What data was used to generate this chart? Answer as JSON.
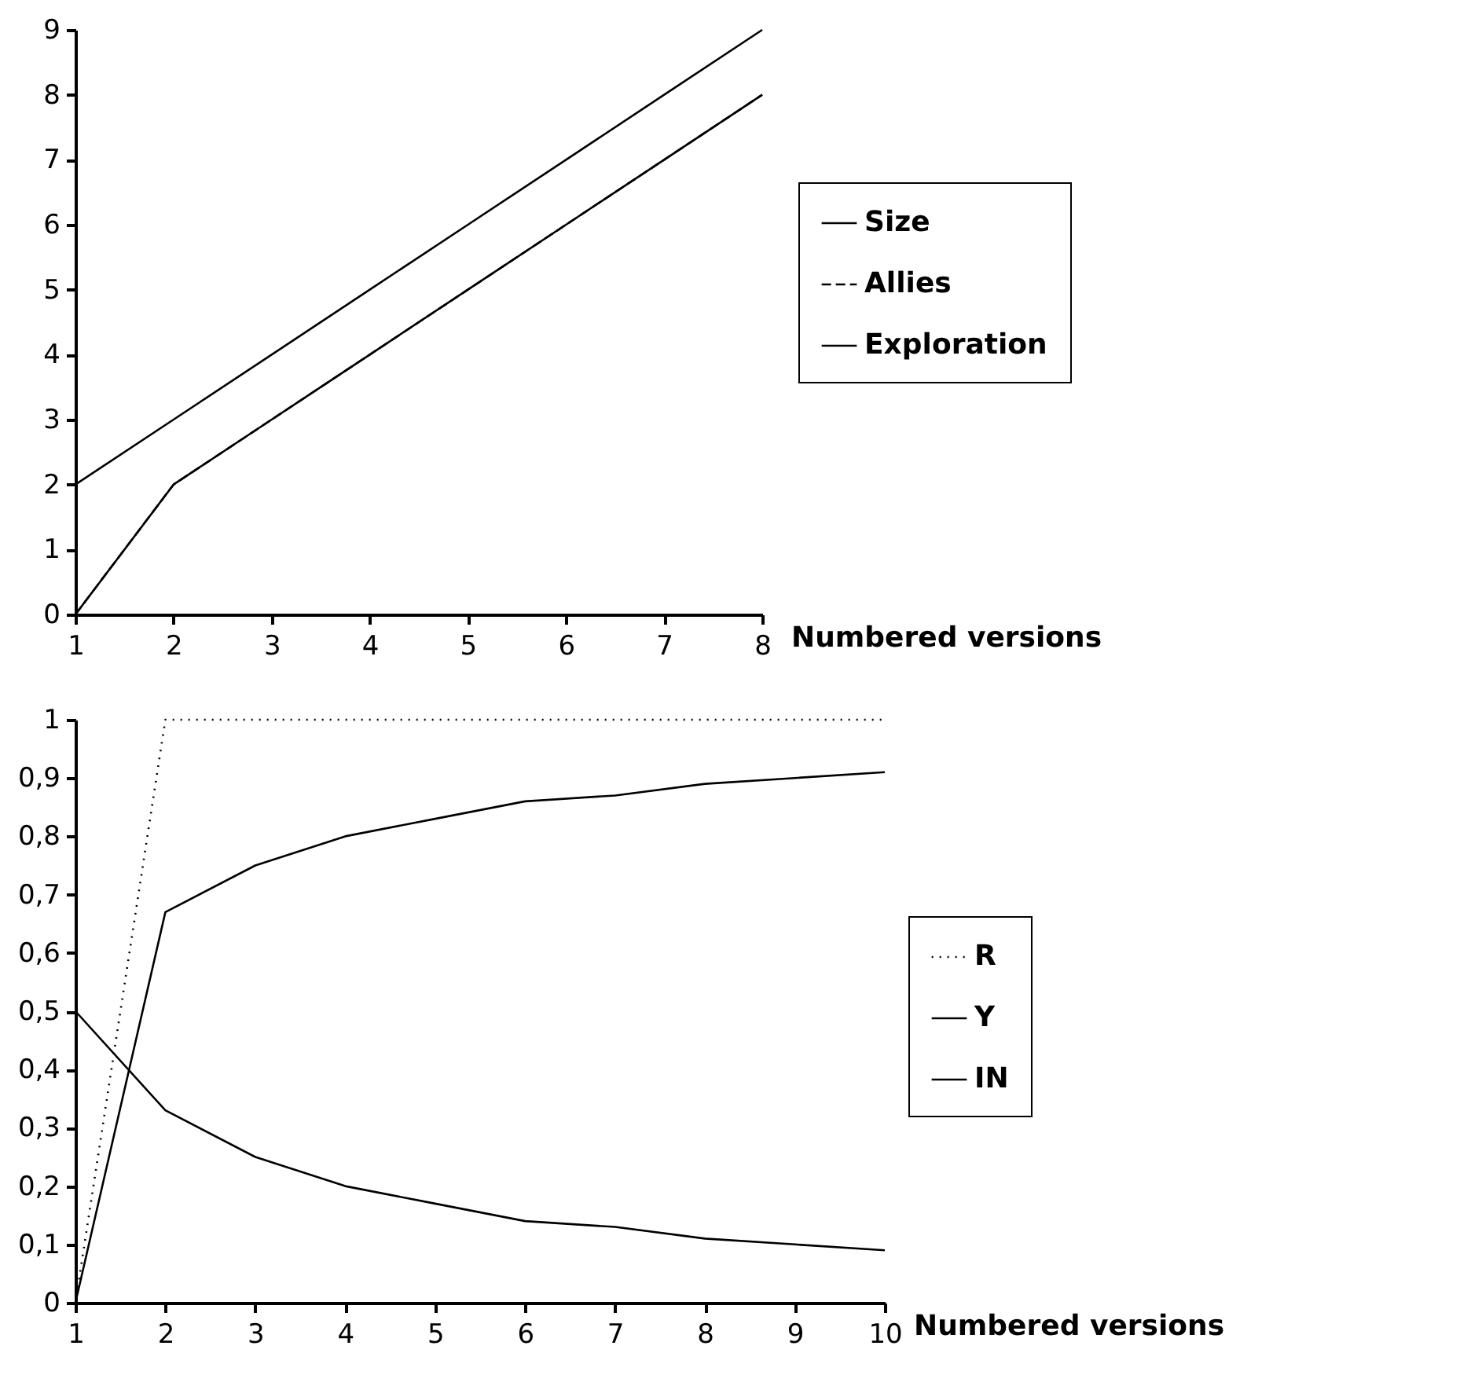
{
  "chart_data": [
    {
      "type": "line",
      "xlabel": "Numbered versions",
      "x": [
        1,
        2,
        3,
        4,
        5,
        6,
        7,
        8
      ],
      "xlim": [
        1,
        8
      ],
      "xticks": [
        1,
        2,
        3,
        4,
        5,
        6,
        7,
        8
      ],
      "ylim": [
        0,
        9
      ],
      "yticks": [
        0,
        1,
        2,
        3,
        4,
        5,
        6,
        7,
        8,
        9
      ],
      "grid": false,
      "legend": "right",
      "marker": "none",
      "series": [
        {
          "name": "Size",
          "color": "#000000",
          "line_style": "solid",
          "values": [
            0,
            2,
            3,
            4,
            5,
            6,
            7,
            8
          ]
        },
        {
          "name": "Allies",
          "color": "#000000",
          "line_style": "dashed",
          "values": [
            0,
            2,
            3,
            4,
            5,
            6,
            7,
            8
          ]
        },
        {
          "name": "Exploration",
          "color": "#000000",
          "line_style": "solid",
          "values": [
            2,
            3,
            4,
            5,
            6,
            7,
            8,
            9
          ]
        }
      ]
    },
    {
      "type": "line",
      "xlabel": "Numbered versions",
      "x": [
        1,
        2,
        3,
        4,
        5,
        6,
        7,
        8,
        9,
        10
      ],
      "xlim": [
        1,
        10
      ],
      "xticks": [
        1,
        2,
        3,
        4,
        5,
        6,
        7,
        8,
        9,
        10
      ],
      "ylim": [
        0,
        1
      ],
      "yticks": [
        0,
        {
          "value": 0.1,
          "label": "0,1"
        },
        {
          "value": 0.2,
          "label": "0,2"
        },
        {
          "value": 0.3,
          "label": "0,3"
        },
        {
          "value": 0.4,
          "label": "0,4"
        },
        {
          "value": 0.5,
          "label": "0,5"
        },
        {
          "value": 0.6,
          "label": "0,6"
        },
        {
          "value": 0.7,
          "label": "0,7"
        },
        {
          "value": 0.8,
          "label": "0,8"
        },
        {
          "value": 0.9,
          "label": "0,9"
        },
        1
      ],
      "grid": false,
      "legend": "right",
      "marker": "none",
      "series": [
        {
          "name": "R",
          "color": "#000000",
          "line_style": "dotted",
          "values": [
            0,
            1,
            1,
            1,
            1,
            1,
            1,
            1,
            1,
            1
          ]
        },
        {
          "name": "Y",
          "color": "#000000",
          "line_style": "solid",
          "values": [
            0,
            0.67,
            0.75,
            0.8,
            0.83,
            0.86,
            0.87,
            0.89,
            0.9,
            0.91
          ]
        },
        {
          "name": "IN",
          "color": "#000000",
          "line_style": "solid",
          "values": [
            0.5,
            0.33,
            0.25,
            0.2,
            0.17,
            0.14,
            0.13,
            0.11,
            0.1,
            0.09
          ]
        }
      ]
    }
  ]
}
